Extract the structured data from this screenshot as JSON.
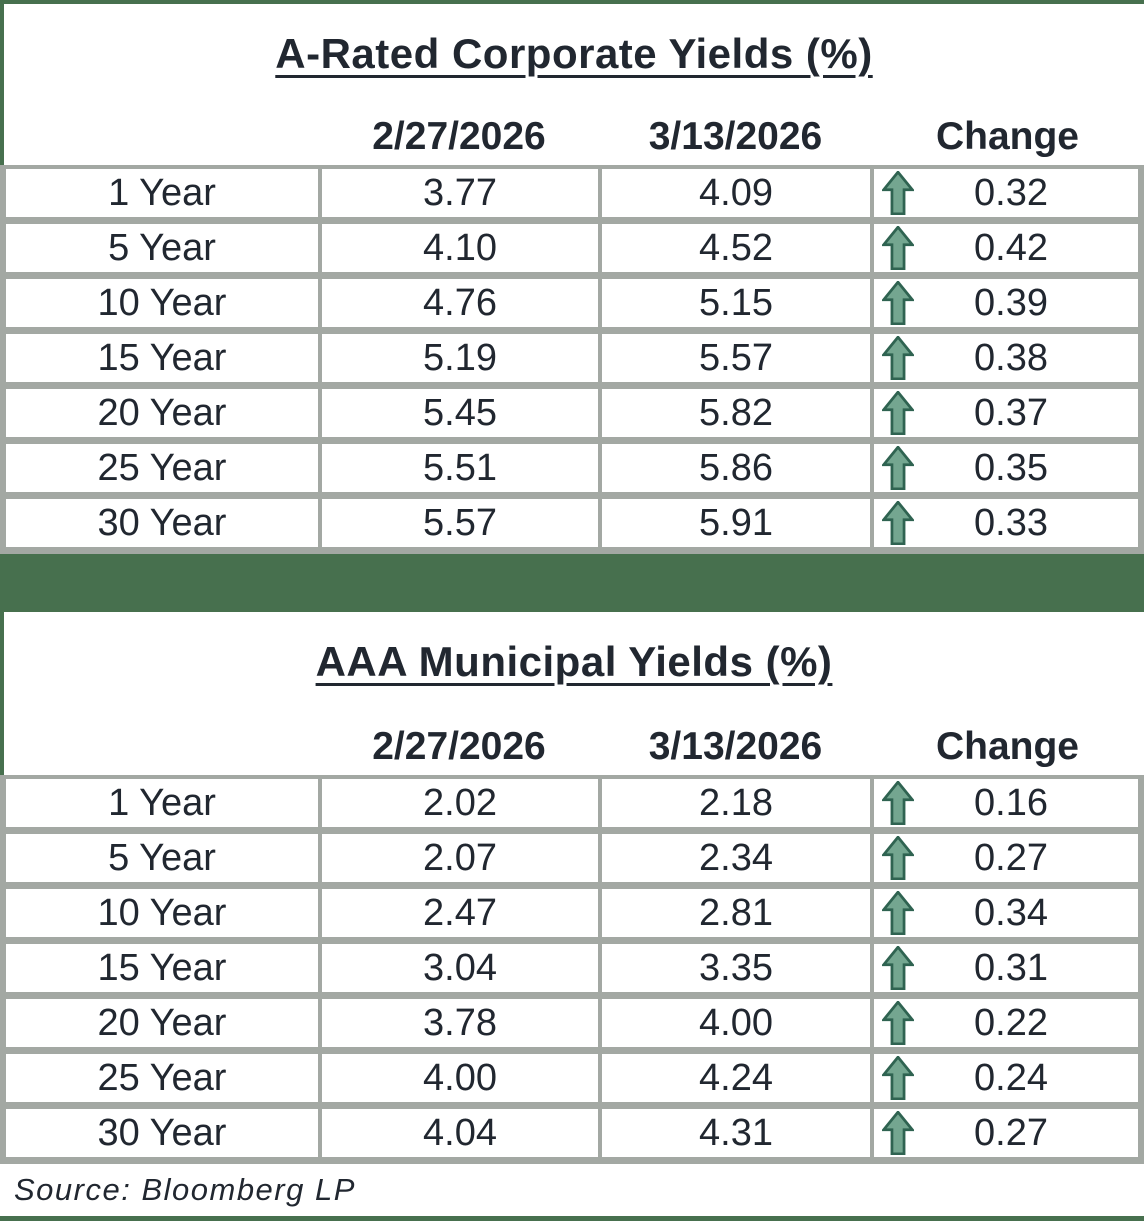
{
  "colors": {
    "banner_green": "#47704e",
    "border_gray": "#a3a8a3",
    "text": "#212730",
    "arrow_fill": "#74a690",
    "arrow_outline": "#2f6351"
  },
  "tables": [
    {
      "title": "A-Rated Corporate Yields (%)",
      "columns": {
        "prev": "2/27/2026",
        "curr": "3/13/2026",
        "change": "Change"
      },
      "rows": [
        {
          "label": "1 Year",
          "prev": "3.77",
          "curr": "4.09",
          "direction": "up",
          "change": "0.32"
        },
        {
          "label": "5 Year",
          "prev": "4.10",
          "curr": "4.52",
          "direction": "up",
          "change": "0.42"
        },
        {
          "label": "10 Year",
          "prev": "4.76",
          "curr": "5.15",
          "direction": "up",
          "change": "0.39"
        },
        {
          "label": "15 Year",
          "prev": "5.19",
          "curr": "5.57",
          "direction": "up",
          "change": "0.38"
        },
        {
          "label": "20 Year",
          "prev": "5.45",
          "curr": "5.82",
          "direction": "up",
          "change": "0.37"
        },
        {
          "label": "25 Year",
          "prev": "5.51",
          "curr": "5.86",
          "direction": "up",
          "change": "0.35"
        },
        {
          "label": "30 Year",
          "prev": "5.57",
          "curr": "5.91",
          "direction": "up",
          "change": "0.33"
        }
      ]
    },
    {
      "title": "AAA Municipal Yields (%)",
      "columns": {
        "prev": "2/27/2026",
        "curr": "3/13/2026",
        "change": "Change"
      },
      "rows": [
        {
          "label": "1 Year",
          "prev": "2.02",
          "curr": "2.18",
          "direction": "up",
          "change": "0.16"
        },
        {
          "label": "5 Year",
          "prev": "2.07",
          "curr": "2.34",
          "direction": "up",
          "change": "0.27"
        },
        {
          "label": "10 Year",
          "prev": "2.47",
          "curr": "2.81",
          "direction": "up",
          "change": "0.34"
        },
        {
          "label": "15 Year",
          "prev": "3.04",
          "curr": "3.35",
          "direction": "up",
          "change": "0.31"
        },
        {
          "label": "20 Year",
          "prev": "3.78",
          "curr": "4.00",
          "direction": "up",
          "change": "0.22"
        },
        {
          "label": "25 Year",
          "prev": "4.00",
          "curr": "4.24",
          "direction": "up",
          "change": "0.24"
        },
        {
          "label": "30 Year",
          "prev": "4.04",
          "curr": "4.31",
          "direction": "up",
          "change": "0.27"
        }
      ]
    }
  ],
  "source": {
    "label": "Source: Bloomberg LP"
  },
  "chart_data": [
    {
      "type": "table",
      "title": "A-Rated Corporate Yields (%)",
      "categories": [
        "1 Year",
        "5 Year",
        "10 Year",
        "15 Year",
        "20 Year",
        "25 Year",
        "30 Year"
      ],
      "series": [
        {
          "name": "2/27/2026",
          "values": [
            3.77,
            4.1,
            4.76,
            5.19,
            5.45,
            5.51,
            5.57
          ]
        },
        {
          "name": "3/13/2026",
          "values": [
            4.09,
            4.52,
            5.15,
            5.57,
            5.82,
            5.86,
            5.91
          ]
        },
        {
          "name": "Change",
          "values": [
            0.32,
            0.42,
            0.39,
            0.38,
            0.37,
            0.35,
            0.33
          ]
        }
      ],
      "annotations": [
        "all changes shown with green up arrows"
      ]
    },
    {
      "type": "table",
      "title": "AAA Municipal Yields (%)",
      "categories": [
        "1 Year",
        "5 Year",
        "10 Year",
        "15 Year",
        "20 Year",
        "25 Year",
        "30 Year"
      ],
      "series": [
        {
          "name": "2/27/2026",
          "values": [
            2.02,
            2.07,
            2.47,
            3.04,
            3.78,
            4.0,
            4.04
          ]
        },
        {
          "name": "3/13/2026",
          "values": [
            2.18,
            2.34,
            2.81,
            3.35,
            4.0,
            4.24,
            4.31
          ]
        },
        {
          "name": "Change",
          "values": [
            0.16,
            0.27,
            0.34,
            0.31,
            0.22,
            0.24,
            0.27
          ]
        }
      ],
      "annotations": [
        "all changes shown with green up arrows",
        "Source: Bloomberg LP"
      ]
    }
  ]
}
